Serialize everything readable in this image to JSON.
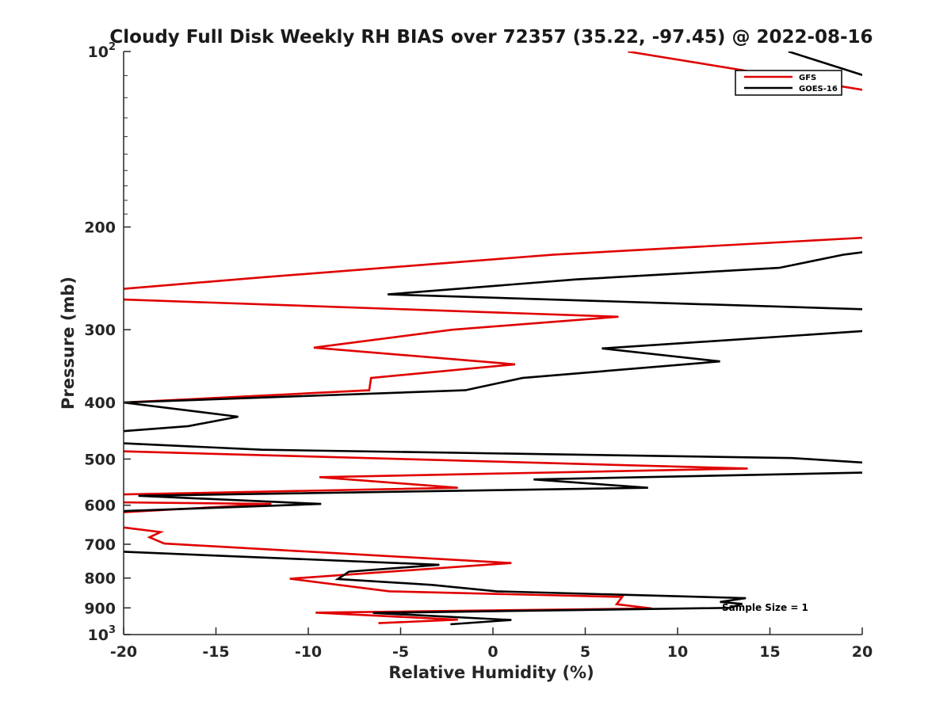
{
  "chart_data": {
    "type": "line",
    "title": "Cloudy Full Disk Weekly RH BIAS over 72357 (35.22, -97.45) @ 2022-08-16",
    "xlabel": "Relative Humidity (%)",
    "ylabel": "Pressure (mb)",
    "xlim": [
      -20,
      20
    ],
    "ylim": [
      100,
      1000
    ],
    "yscale": "log",
    "yreversed": true,
    "x_ticks": [
      "-20",
      "-15",
      "-10",
      "-5",
      "0",
      "5",
      "10",
      "15",
      "20"
    ],
    "y_ticks": [
      {
        "value": 100,
        "label": "10",
        "sup": "2"
      },
      {
        "value": 200,
        "label": "200"
      },
      {
        "value": 300,
        "label": "300"
      },
      {
        "value": 400,
        "label": "400"
      },
      {
        "value": 500,
        "label": "500"
      },
      {
        "value": 600,
        "label": "600"
      },
      {
        "value": 700,
        "label": "700"
      },
      {
        "value": 800,
        "label": "800"
      },
      {
        "value": 900,
        "label": "900"
      },
      {
        "value": 1000,
        "label": "10",
        "sup": "3"
      }
    ],
    "legend_position": "top-right",
    "annotation": "Sample Size = 1",
    "series": [
      {
        "name": "GFS",
        "color": "#e00000",
        "points": [
          [
            7.3,
            100
          ],
          [
            20.5,
            117
          ],
          [
            null,
            null
          ],
          [
            20.8,
            208
          ],
          [
            3.3,
            223
          ],
          [
            -12.5,
            244
          ],
          [
            -20.5,
            256
          ],
          [
            null,
            null
          ],
          [
            -20.5,
            266
          ],
          [
            6.8,
            285
          ],
          [
            -2.2,
            300
          ],
          [
            -9.7,
            322
          ],
          [
            1.2,
            344
          ],
          [
            -6.6,
            363
          ],
          [
            -6.7,
            381
          ],
          [
            -20,
            400
          ],
          [
            null,
            null
          ],
          [
            -20,
            485
          ],
          [
            13.8,
            519
          ],
          [
            -9.4,
            537
          ],
          [
            -1.9,
            560
          ],
          [
            -20,
            575
          ],
          [
            -20.5,
            593
          ],
          [
            -12,
            597
          ],
          [
            -20.5,
            618
          ],
          [
            null,
            null
          ],
          [
            -20,
            655
          ],
          [
            -18,
            667
          ],
          [
            -18.6,
            681
          ],
          [
            -17.8,
            698
          ],
          [
            1,
            754
          ],
          [
            -11,
            802
          ],
          [
            -5.6,
            843
          ],
          [
            7,
            862
          ],
          [
            6.7,
            887
          ],
          [
            8.6,
            902
          ],
          [
            -9.6,
            917
          ],
          [
            -1.9,
            943
          ],
          [
            -6.2,
            956
          ]
        ]
      },
      {
        "name": "GOES-16",
        "color": "#000000",
        "points": [
          [
            16,
            100
          ],
          [
            20.5,
            111
          ],
          [
            null,
            null
          ],
          [
            20.5,
            220
          ],
          [
            19,
            223
          ],
          [
            15.5,
            235
          ],
          [
            4.5,
            246
          ],
          [
            -5.7,
            261
          ],
          [
            20.5,
            277
          ],
          [
            null,
            null
          ],
          [
            20.5,
            301
          ],
          [
            12.5,
            313
          ],
          [
            5.9,
            323
          ],
          [
            12.3,
            340
          ],
          [
            1.6,
            363
          ],
          [
            -1.5,
            381
          ],
          [
            -20,
            400
          ],
          [
            -13.8,
            423
          ],
          [
            -16.5,
            439
          ],
          [
            -20.5,
            449
          ],
          [
            null,
            null
          ],
          [
            -20.5,
            469
          ],
          [
            -12.5,
            482
          ],
          [
            16.2,
            498
          ],
          [
            20.5,
            508
          ],
          [
            null,
            null
          ],
          [
            20.5,
            527
          ],
          [
            2.2,
            542
          ],
          [
            8.4,
            560
          ],
          [
            -19.2,
            578
          ],
          [
            -9.3,
            597
          ],
          [
            -20,
            614
          ],
          [
            null,
            null
          ],
          [
            -20.5,
            720
          ],
          [
            -2.9,
            759
          ],
          [
            -7.8,
            780
          ],
          [
            -8.4,
            803
          ],
          [
            -3.3,
            822
          ],
          [
            0.2,
            843
          ],
          [
            13.7,
            866
          ],
          [
            12.3,
            879
          ],
          [
            13.5,
            886
          ],
          [
            12.8,
            900
          ],
          [
            -6.5,
            918
          ],
          [
            1,
            944
          ],
          [
            -2.3,
            960
          ]
        ]
      }
    ]
  }
}
